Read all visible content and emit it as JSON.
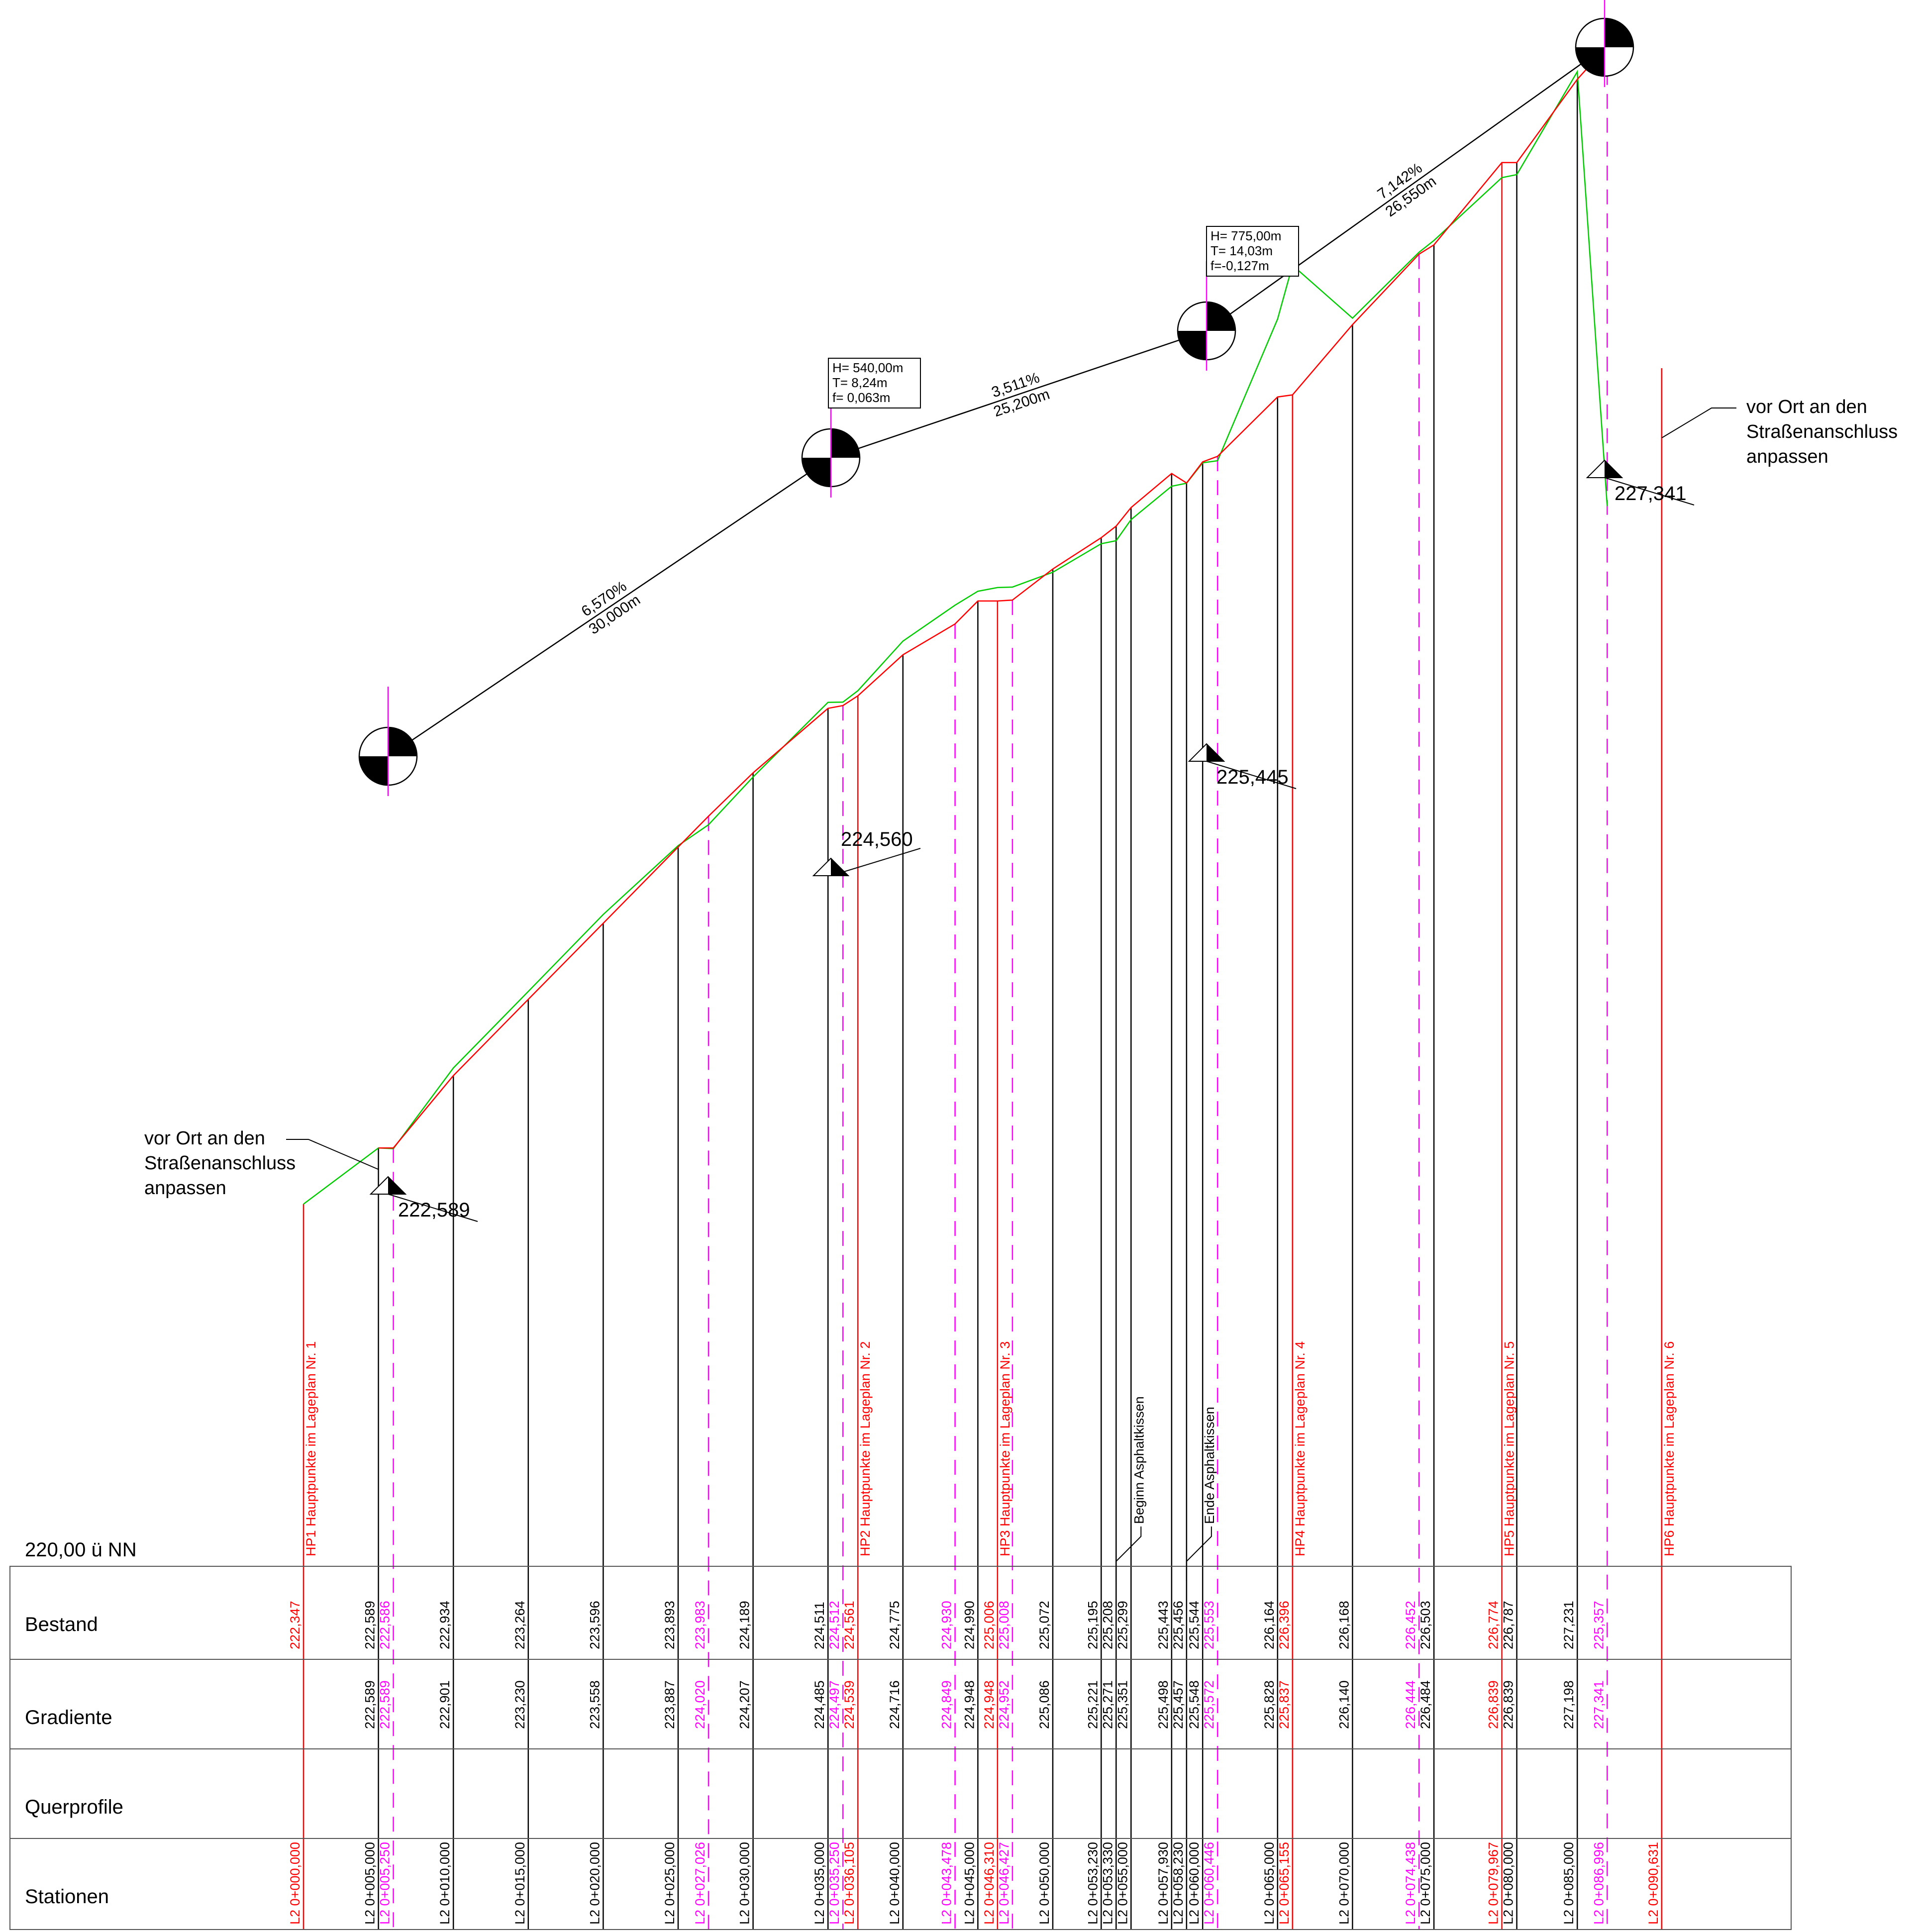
{
  "datum_label": "220,00 ü NN",
  "rows": {
    "bestand": "Bestand",
    "gradiente": "Gradiente",
    "querprofile": "Querprofile",
    "stationen": "Stationen"
  },
  "colors": {
    "black": "#000000",
    "red": "#ff0000",
    "magenta": "#ff00ff",
    "green": "#00cc00"
  },
  "columns": [
    {
      "kind": "red",
      "station": "L2 0+000,000",
      "bestand": "222,347",
      "gradiente": "",
      "label": "HP1 Hauptpunkte im Lageplan Nr. 1"
    },
    {
      "kind": "black",
      "station": "L2 0+005,000",
      "bestand": "222,589",
      "gradiente": "222,589",
      "label": ""
    },
    {
      "kind": "magenta",
      "station": "L2 0+005,250",
      "bestand": "222,586",
      "gradiente": "222,589",
      "label": ""
    },
    {
      "kind": "black",
      "station": "L2 0+010,000",
      "bestand": "222,934",
      "gradiente": "222,901",
      "label": ""
    },
    {
      "kind": "black",
      "station": "L2 0+015,000",
      "bestand": "223,264",
      "gradiente": "223,230",
      "label": ""
    },
    {
      "kind": "black",
      "station": "L2 0+020,000",
      "bestand": "223,596",
      "gradiente": "223,558",
      "label": ""
    },
    {
      "kind": "black",
      "station": "L2 0+025,000",
      "bestand": "223,893",
      "gradiente": "223,887",
      "label": ""
    },
    {
      "kind": "magenta",
      "station": "L2 0+027,026",
      "bestand": "223,983",
      "gradiente": "224,020",
      "label": ""
    },
    {
      "kind": "black",
      "station": "L2 0+030,000",
      "bestand": "224,189",
      "gradiente": "224,207",
      "label": ""
    },
    {
      "kind": "black",
      "station": "L2 0+035,000",
      "bestand": "224,511",
      "gradiente": "224,485",
      "label": ""
    },
    {
      "kind": "magenta",
      "station": "L2 0+035,250",
      "bestand": "224,512",
      "gradiente": "224,497",
      "label": ""
    },
    {
      "kind": "red",
      "station": "L2 0+036,105",
      "bestand": "224,561",
      "gradiente": "224,539",
      "label": "HP2 Hauptpunkte im Lageplan Nr. 2"
    },
    {
      "kind": "black",
      "station": "L2 0+040,000",
      "bestand": "224,775",
      "gradiente": "224,716",
      "label": ""
    },
    {
      "kind": "magenta",
      "station": "L2 0+043,478",
      "bestand": "224,930",
      "gradiente": "224,849",
      "label": ""
    },
    {
      "kind": "black",
      "station": "L2 0+045,000",
      "bestand": "224,990",
      "gradiente": "224,948",
      "label": ""
    },
    {
      "kind": "red",
      "station": "L2 0+046,310",
      "bestand": "225,006",
      "gradiente": "224,948",
      "label": "HP3 Hauptpunkte im Lageplan Nr. 3"
    },
    {
      "kind": "magenta",
      "station": "L2 0+046,427",
      "bestand": "225,008",
      "gradiente": "224,952",
      "label": ""
    },
    {
      "kind": "black",
      "station": "L2 0+050,000",
      "bestand": "225,072",
      "gradiente": "225,086",
      "label": ""
    },
    {
      "kind": "black",
      "station": "L2 0+053,230",
      "bestand": "225,195",
      "gradiente": "225,221",
      "label": ""
    },
    {
      "kind": "black",
      "station": "L2 0+053,330",
      "bestand": "225,208",
      "gradiente": "225,271",
      "label": ""
    },
    {
      "kind": "black",
      "station": "L2 0+055,000",
      "bestand": "225,299",
      "gradiente": "225,351",
      "label": ""
    },
    {
      "kind": "black",
      "station": "L2 0+057,930",
      "bestand": "225,443",
      "gradiente": "225,498",
      "label": ""
    },
    {
      "kind": "black",
      "station": "L2 0+058,230",
      "bestand": "225,456",
      "gradiente": "225,457",
      "label": ""
    },
    {
      "kind": "black",
      "station": "L2 0+060,000",
      "bestand": "225,544",
      "gradiente": "225,548",
      "label": ""
    },
    {
      "kind": "magenta",
      "station": "L2 0+060,446",
      "bestand": "225,553",
      "gradiente": "225,572",
      "label": ""
    },
    {
      "kind": "black",
      "station": "L2 0+065,000",
      "bestand": "226,164",
      "gradiente": "225,828",
      "label": ""
    },
    {
      "kind": "red",
      "station": "L2 0+065,155",
      "bestand": "226,396",
      "gradiente": "225,837",
      "label": "HP4 Hauptpunkte im Lageplan Nr. 4"
    },
    {
      "kind": "black",
      "station": "L2 0+070,000",
      "bestand": "226,168",
      "gradiente": "226,140",
      "label": ""
    },
    {
      "kind": "magenta",
      "station": "L2 0+074,438",
      "bestand": "226,452",
      "gradiente": "226,444",
      "label": ""
    },
    {
      "kind": "black",
      "station": "L2 0+075,000",
      "bestand": "226,503",
      "gradiente": "226,484",
      "label": ""
    },
    {
      "kind": "red",
      "station": "L2 0+079,967",
      "bestand": "226,774",
      "gradiente": "226,839",
      "label": "HP5 Hauptpunkte im Lageplan Nr. 5"
    },
    {
      "kind": "black",
      "station": "L2 0+080,000",
      "bestand": "226,787",
      "gradiente": "226,839",
      "label": ""
    },
    {
      "kind": "black",
      "station": "L2 0+085,000",
      "bestand": "227,231",
      "gradiente": "227,198",
      "label": ""
    },
    {
      "kind": "magenta",
      "station": "L2 0+086,996",
      "bestand": "225,357",
      "gradiente": "227,341",
      "label": ""
    },
    {
      "kind": "red",
      "station": "L2 0+090,631",
      "bestand": "",
      "gradiente": "",
      "label": "HP6 Hauptpunkte im Lageplan Nr. 6"
    }
  ],
  "special_labels": [
    {
      "text": "Beginn Asphaltkissen"
    },
    {
      "text": "Ende Asphaltkissen"
    }
  ],
  "tangent_grades": [
    {
      "percent": "6,570%",
      "length": "30,000m"
    },
    {
      "percent": "3,511%",
      "length": "25,200m"
    },
    {
      "percent": "7,142%",
      "length": "26,550m"
    }
  ],
  "curve_boxes": [
    {
      "H": "H=   540,00m",
      "T": "T=  8,24m",
      "f": "f= 0,063m"
    },
    {
      "H": "H=   775,00m",
      "T": "T= 14,03m",
      "f": "f=-0,127m"
    }
  ],
  "elevation_marks": [
    "222,589",
    "224,560",
    "225,445",
    "227,341"
  ],
  "notes": [
    {
      "lines": [
        "vor Ort an den",
        "Straßenanschluss",
        "anpassen"
      ]
    },
    {
      "lines": [
        "vor Ort an den",
        "Straßenanschluss",
        "anpassen"
      ]
    }
  ]
}
